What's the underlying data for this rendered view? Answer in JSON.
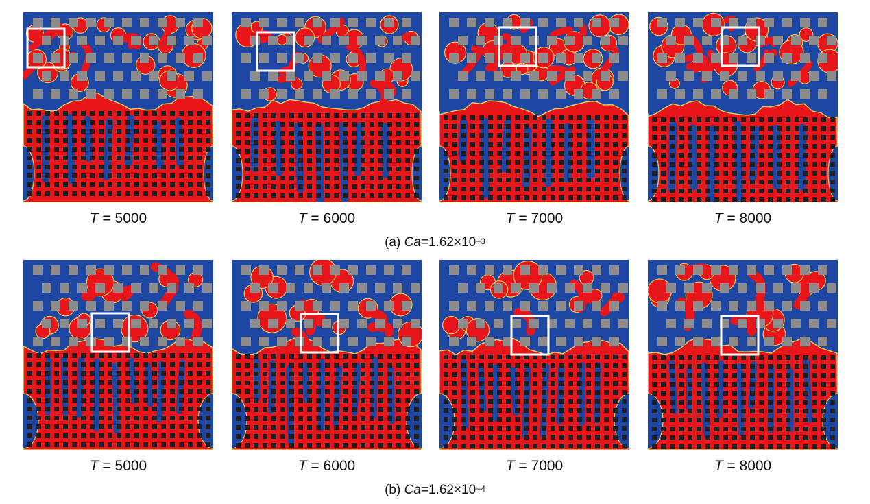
{
  "colors": {
    "oil": "#e8151a",
    "water": "#1d47a3",
    "interface": "#d9cf5a",
    "soft_obstacle": "#8c8c8c",
    "hard_obstacle": "#1f1f1f",
    "highlight_box": "#ffffff"
  },
  "rows": [
    {
      "id": "a",
      "caption_prefix": "(a) ",
      "caption_var": "Ca",
      "caption_value": "=1.62×10",
      "caption_exp": "−3",
      "panels": [
        {
          "time_var": "T",
          "time_text": " = 5000",
          "time": 5000
        },
        {
          "time_var": "T",
          "time_text": " = 6000",
          "time": 6000
        },
        {
          "time_var": "T",
          "time_text": " = 7000",
          "time": 7000
        },
        {
          "time_var": "T",
          "time_text": " = 8000",
          "time": 8000
        }
      ]
    },
    {
      "id": "b",
      "caption_prefix": "(b) ",
      "caption_var": "Ca",
      "caption_value": "=1.62×10",
      "caption_exp": "−4",
      "panels": [
        {
          "time_var": "T",
          "time_text": " = 5000",
          "time": 5000
        },
        {
          "time_var": "T",
          "time_text": " = 6000",
          "time": 6000
        },
        {
          "time_var": "T",
          "time_text": " = 7000",
          "time": 7000
        },
        {
          "time_var": "T",
          "time_text": " = 8000",
          "time": 8000
        }
      ]
    }
  ]
}
